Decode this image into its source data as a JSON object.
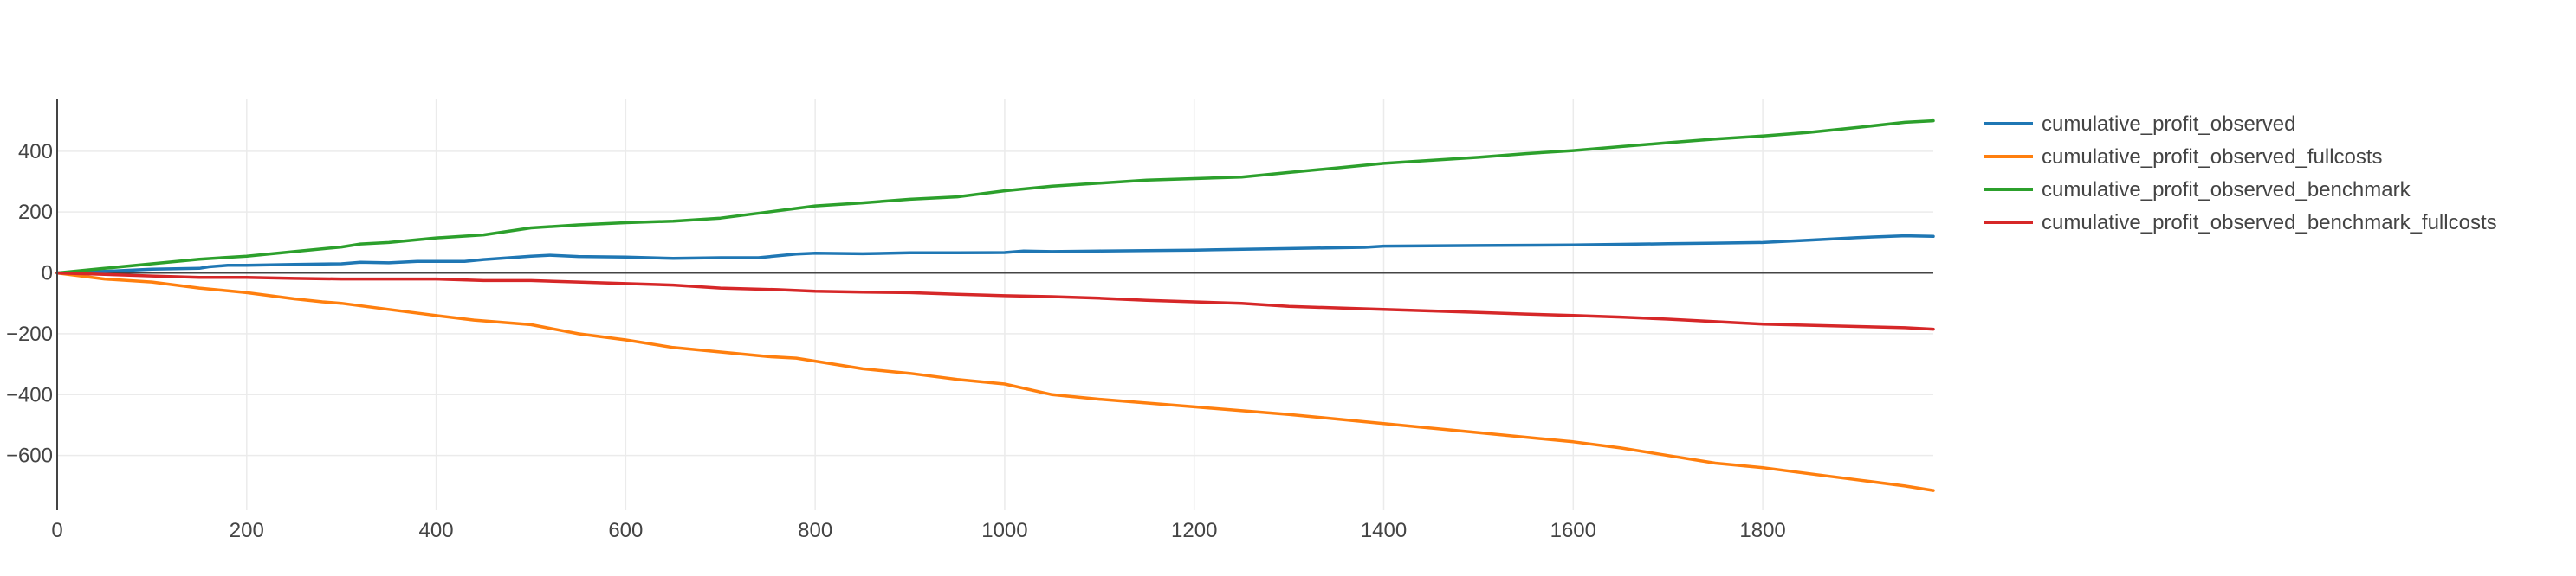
{
  "chart_data": {
    "type": "line",
    "title": "",
    "xlabel": "",
    "ylabel": "",
    "xlim": [
      0,
      1980
    ],
    "ylim": [
      -780,
      570
    ],
    "x_ticks": [
      0,
      200,
      400,
      600,
      800,
      1000,
      1200,
      1400,
      1600,
      1800
    ],
    "y_ticks": [
      -600,
      -400,
      -200,
      0,
      200,
      400
    ],
    "grid": true,
    "zero_line": true,
    "legend_position": "top-right",
    "series": [
      {
        "name": "cumulative_profit_observed",
        "color": "#1f77b4",
        "points": [
          [
            0,
            0
          ],
          [
            50,
            5
          ],
          [
            100,
            12
          ],
          [
            150,
            15
          ],
          [
            160,
            20
          ],
          [
            180,
            25
          ],
          [
            200,
            25
          ],
          [
            250,
            28
          ],
          [
            300,
            30
          ],
          [
            320,
            35
          ],
          [
            350,
            33
          ],
          [
            380,
            38
          ],
          [
            430,
            38
          ],
          [
            450,
            44
          ],
          [
            500,
            55
          ],
          [
            520,
            58
          ],
          [
            550,
            54
          ],
          [
            600,
            52
          ],
          [
            650,
            48
          ],
          [
            700,
            50
          ],
          [
            740,
            50
          ],
          [
            780,
            62
          ],
          [
            800,
            65
          ],
          [
            850,
            63
          ],
          [
            900,
            66
          ],
          [
            950,
            66
          ],
          [
            1000,
            67
          ],
          [
            1020,
            72
          ],
          [
            1050,
            70
          ],
          [
            1100,
            72
          ],
          [
            1200,
            75
          ],
          [
            1300,
            80
          ],
          [
            1380,
            84
          ],
          [
            1400,
            88
          ],
          [
            1500,
            90
          ],
          [
            1600,
            92
          ],
          [
            1650,
            94
          ],
          [
            1700,
            96
          ],
          [
            1750,
            98
          ],
          [
            1800,
            100
          ],
          [
            1850,
            108
          ],
          [
            1900,
            116
          ],
          [
            1950,
            122
          ],
          [
            1980,
            120
          ]
        ]
      },
      {
        "name": "cumulative_profit_observed_fullcosts",
        "color": "#ff7f0e",
        "points": [
          [
            0,
            0
          ],
          [
            50,
            -20
          ],
          [
            100,
            -30
          ],
          [
            150,
            -50
          ],
          [
            200,
            -65
          ],
          [
            250,
            -85
          ],
          [
            280,
            -95
          ],
          [
            300,
            -100
          ],
          [
            350,
            -120
          ],
          [
            400,
            -140
          ],
          [
            440,
            -155
          ],
          [
            500,
            -170
          ],
          [
            550,
            -200
          ],
          [
            600,
            -220
          ],
          [
            650,
            -245
          ],
          [
            700,
            -260
          ],
          [
            750,
            -275
          ],
          [
            780,
            -280
          ],
          [
            800,
            -290
          ],
          [
            850,
            -315
          ],
          [
            900,
            -330
          ],
          [
            950,
            -350
          ],
          [
            1000,
            -365
          ],
          [
            1050,
            -400
          ],
          [
            1100,
            -415
          ],
          [
            1200,
            -440
          ],
          [
            1300,
            -465
          ],
          [
            1400,
            -495
          ],
          [
            1500,
            -525
          ],
          [
            1600,
            -555
          ],
          [
            1650,
            -575
          ],
          [
            1700,
            -600
          ],
          [
            1750,
            -625
          ],
          [
            1800,
            -640
          ],
          [
            1850,
            -660
          ],
          [
            1900,
            -680
          ],
          [
            1950,
            -700
          ],
          [
            1980,
            -715
          ]
        ]
      },
      {
        "name": "cumulative_profit_observed_benchmark",
        "color": "#2ca02c",
        "points": [
          [
            0,
            0
          ],
          [
            50,
            15
          ],
          [
            100,
            30
          ],
          [
            150,
            45
          ],
          [
            200,
            55
          ],
          [
            250,
            70
          ],
          [
            300,
            85
          ],
          [
            320,
            95
          ],
          [
            350,
            100
          ],
          [
            400,
            115
          ],
          [
            450,
            125
          ],
          [
            500,
            148
          ],
          [
            550,
            158
          ],
          [
            600,
            165
          ],
          [
            650,
            170
          ],
          [
            700,
            180
          ],
          [
            750,
            200
          ],
          [
            800,
            220
          ],
          [
            850,
            230
          ],
          [
            900,
            242
          ],
          [
            950,
            250
          ],
          [
            1000,
            270
          ],
          [
            1050,
            285
          ],
          [
            1100,
            295
          ],
          [
            1150,
            305
          ],
          [
            1200,
            310
          ],
          [
            1250,
            315
          ],
          [
            1300,
            330
          ],
          [
            1350,
            345
          ],
          [
            1400,
            360
          ],
          [
            1450,
            370
          ],
          [
            1500,
            380
          ],
          [
            1550,
            392
          ],
          [
            1600,
            402
          ],
          [
            1650,
            415
          ],
          [
            1700,
            428
          ],
          [
            1750,
            440
          ],
          [
            1800,
            450
          ],
          [
            1850,
            462
          ],
          [
            1900,
            478
          ],
          [
            1950,
            495
          ],
          [
            1980,
            500
          ]
        ]
      },
      {
        "name": "cumulative_profit_observed_benchmark_fullcosts",
        "color": "#d62728",
        "points": [
          [
            0,
            0
          ],
          [
            50,
            -5
          ],
          [
            100,
            -10
          ],
          [
            150,
            -15
          ],
          [
            200,
            -15
          ],
          [
            250,
            -18
          ],
          [
            300,
            -20
          ],
          [
            350,
            -20
          ],
          [
            400,
            -20
          ],
          [
            450,
            -25
          ],
          [
            500,
            -25
          ],
          [
            550,
            -30
          ],
          [
            600,
            -35
          ],
          [
            650,
            -40
          ],
          [
            700,
            -50
          ],
          [
            760,
            -55
          ],
          [
            800,
            -60
          ],
          [
            850,
            -63
          ],
          [
            900,
            -65
          ],
          [
            950,
            -70
          ],
          [
            1000,
            -75
          ],
          [
            1050,
            -78
          ],
          [
            1100,
            -83
          ],
          [
            1150,
            -90
          ],
          [
            1200,
            -95
          ],
          [
            1250,
            -100
          ],
          [
            1300,
            -110
          ],
          [
            1350,
            -115
          ],
          [
            1400,
            -120
          ],
          [
            1450,
            -125
          ],
          [
            1500,
            -130
          ],
          [
            1550,
            -135
          ],
          [
            1600,
            -140
          ],
          [
            1650,
            -145
          ],
          [
            1700,
            -152
          ],
          [
            1750,
            -160
          ],
          [
            1800,
            -168
          ],
          [
            1850,
            -172
          ],
          [
            1900,
            -176
          ],
          [
            1950,
            -180
          ],
          [
            1980,
            -185
          ]
        ]
      }
    ]
  }
}
